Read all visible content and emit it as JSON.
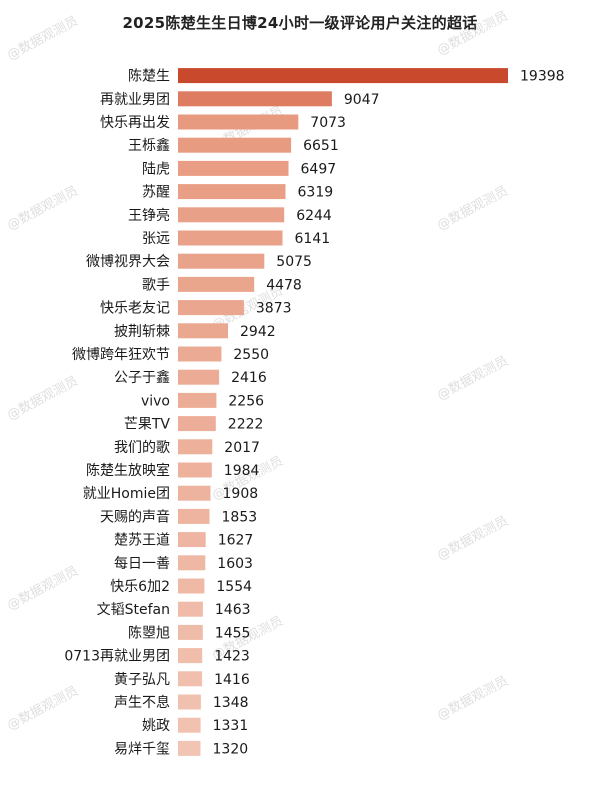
{
  "chart_data": {
    "type": "bar",
    "orientation": "horizontal",
    "title": "2025陈楚生生日博24小时一级评论用户关注的超话",
    "categories": [
      "陈楚生",
      "再就业男团",
      "快乐再出发",
      "王栎鑫",
      "陆虎",
      "苏醒",
      "王铮亮",
      "张远",
      "微博视界大会",
      "歌手",
      "快乐老友记",
      "披荆斩棘",
      "微博跨年狂欢节",
      "公子于鑫",
      "vivo",
      "芒果TV",
      "我们的歌",
      "陈楚生放映室",
      "就业Homie团",
      "天赐的声音",
      "楚苏王道",
      "每日一善",
      "快乐6加2",
      "文韬Stefan",
      "陈曌旭",
      "0713再就业男团",
      "黄子弘凡",
      "声生不息",
      "姚政",
      "易烊千玺"
    ],
    "values": [
      19398,
      9047,
      7073,
      6651,
      6497,
      6319,
      6244,
      6141,
      5075,
      4478,
      3873,
      2942,
      2550,
      2416,
      2256,
      2222,
      2017,
      1984,
      1908,
      1853,
      1627,
      1603,
      1554,
      1463,
      1455,
      1423,
      1416,
      1348,
      1331,
      1320
    ],
    "xlim": [
      0,
      19398
    ],
    "grid": false,
    "legend": "none",
    "colors": {
      "top_bar": "#c9492c",
      "second_bar": "#dd7c60",
      "bar_gradient_start": "#e79a80",
      "bar_gradient_end": "#f2c4b3",
      "text": "#1a1a1a"
    }
  },
  "watermark": "@数据观测员"
}
